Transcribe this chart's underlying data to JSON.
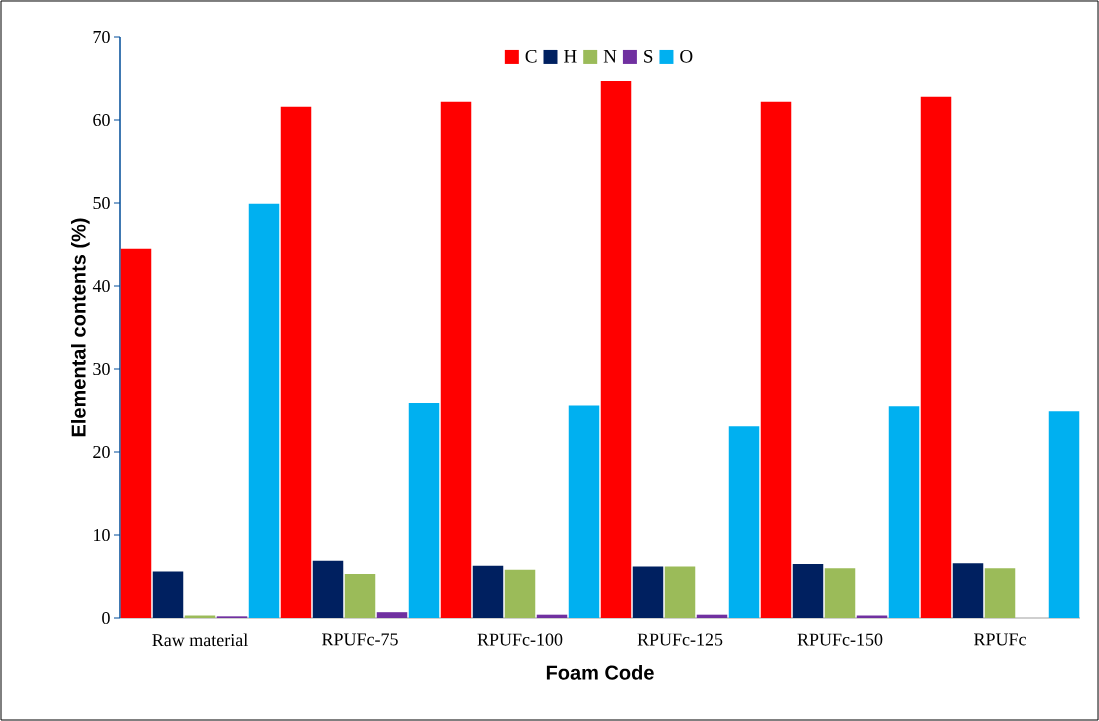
{
  "chart_data": {
    "type": "bar",
    "xlabel": "Foam Code",
    "ylabel": "Elemental contents (%)",
    "categories": [
      "Raw material",
      "RPUFc-75",
      "RPUFc-100",
      "RPUFc-125",
      "RPUFc-150",
      "RPUFc"
    ],
    "series": [
      {
        "name": "C",
        "color": "#ff0000",
        "values": [
          44.5,
          61.6,
          62.2,
          64.7,
          62.2,
          62.8
        ]
      },
      {
        "name": "H",
        "color": "#002060",
        "values": [
          5.6,
          6.9,
          6.3,
          6.2,
          6.5,
          6.6
        ]
      },
      {
        "name": "N",
        "color": "#9bbb59",
        "values": [
          0.3,
          5.3,
          5.8,
          6.2,
          6.0,
          6.0
        ]
      },
      {
        "name": "S",
        "color": "#7030a0",
        "values": [
          0.2,
          0.7,
          0.4,
          0.4,
          0.3,
          0
        ]
      },
      {
        "name": "O",
        "color": "#00b0f0",
        "values": [
          49.9,
          25.9,
          25.6,
          23.1,
          25.5,
          24.9
        ]
      }
    ],
    "ylim": [
      0,
      70
    ],
    "yticks": [
      0,
      10,
      20,
      30,
      40,
      50,
      60,
      70
    ],
    "grid": false,
    "legend": "top"
  }
}
